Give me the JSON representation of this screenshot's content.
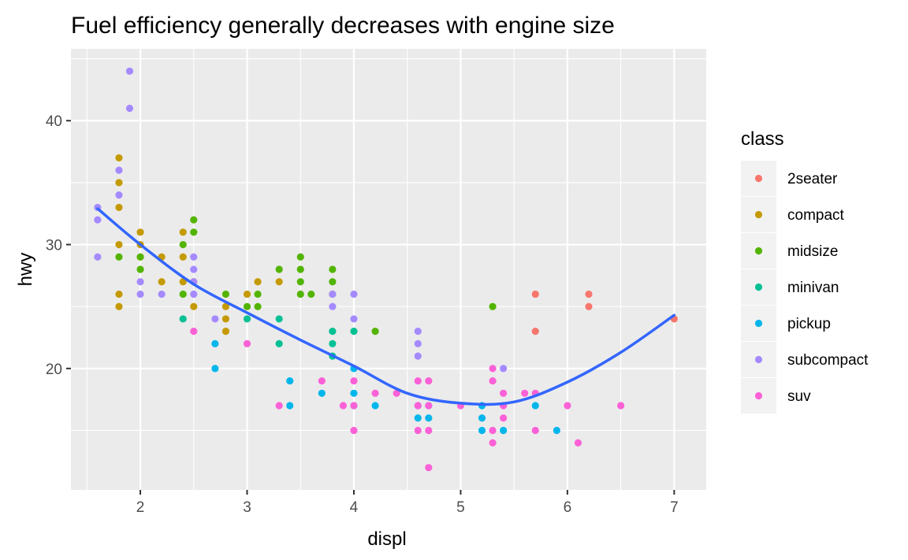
{
  "chart_data": {
    "type": "scatter",
    "title": "Fuel efficiency generally decreases with engine size",
    "xlabel": "displ",
    "ylabel": "hwy",
    "xlim": [
      1.35,
      7.3
    ],
    "ylim": [
      10.2,
      45.8
    ],
    "x_ticks": [
      2,
      3,
      4,
      5,
      6,
      7
    ],
    "y_ticks": [
      20,
      30,
      40
    ],
    "grid": true,
    "legend": {
      "title": "class",
      "position": "right",
      "entries": [
        {
          "name": "2seater",
          "color": "#F8766D"
        },
        {
          "name": "compact",
          "color": "#C49A00"
        },
        {
          "name": "midsize",
          "color": "#53B400"
        },
        {
          "name": "minivan",
          "color": "#00C094"
        },
        {
          "name": "pickup",
          "color": "#00B6EB"
        },
        {
          "name": "subcompact",
          "color": "#A58AFF"
        },
        {
          "name": "suv",
          "color": "#FB61D7"
        }
      ]
    },
    "series": [
      {
        "name": "2seater",
        "color": "#F8766D",
        "points": [
          [
            5.7,
            26
          ],
          [
            5.7,
            23
          ],
          [
            6.2,
            26
          ],
          [
            6.2,
            25
          ],
          [
            7.0,
            24
          ]
        ]
      },
      {
        "name": "compact",
        "color": "#C49A00",
        "points": [
          [
            1.8,
            37
          ],
          [
            1.8,
            35
          ],
          [
            1.8,
            33
          ],
          [
            1.8,
            30
          ],
          [
            1.8,
            26
          ],
          [
            1.8,
            25
          ],
          [
            2.0,
            31
          ],
          [
            2.0,
            30
          ],
          [
            2.0,
            29
          ],
          [
            2.2,
            29
          ],
          [
            2.2,
            27
          ],
          [
            2.4,
            31
          ],
          [
            2.4,
            29
          ],
          [
            2.4,
            27
          ],
          [
            2.5,
            27
          ],
          [
            2.5,
            25
          ],
          [
            2.8,
            25
          ],
          [
            2.8,
            24
          ],
          [
            2.8,
            23
          ],
          [
            3.0,
            26
          ],
          [
            3.1,
            27
          ],
          [
            3.3,
            27
          ]
        ]
      },
      {
        "name": "midsize",
        "color": "#53B400",
        "points": [
          [
            1.8,
            29
          ],
          [
            2.0,
            29
          ],
          [
            2.0,
            28
          ],
          [
            2.4,
            30
          ],
          [
            2.4,
            26
          ],
          [
            2.5,
            32
          ],
          [
            2.5,
            31
          ],
          [
            2.8,
            26
          ],
          [
            3.0,
            25
          ],
          [
            3.1,
            26
          ],
          [
            3.1,
            25
          ],
          [
            3.3,
            28
          ],
          [
            3.5,
            29
          ],
          [
            3.5,
            28
          ],
          [
            3.5,
            27
          ],
          [
            3.5,
            26
          ],
          [
            3.6,
            26
          ],
          [
            3.8,
            28
          ],
          [
            3.8,
            27
          ],
          [
            3.8,
            26
          ],
          [
            5.3,
            25
          ],
          [
            4.2,
            23
          ]
        ]
      },
      {
        "name": "minivan",
        "color": "#00C094",
        "points": [
          [
            2.4,
            24
          ],
          [
            3.0,
            24
          ],
          [
            3.3,
            24
          ],
          [
            3.3,
            22
          ],
          [
            3.8,
            23
          ],
          [
            3.8,
            22
          ],
          [
            3.8,
            21
          ],
          [
            4.0,
            23
          ]
        ]
      },
      {
        "name": "pickup",
        "color": "#00B6EB",
        "points": [
          [
            2.7,
            22
          ],
          [
            2.7,
            20
          ],
          [
            3.4,
            19
          ],
          [
            3.4,
            17
          ],
          [
            3.7,
            18
          ],
          [
            4.0,
            20
          ],
          [
            4.0,
            18
          ],
          [
            4.0,
            17
          ],
          [
            4.2,
            17
          ],
          [
            4.6,
            17
          ],
          [
            4.6,
            16
          ],
          [
            4.7,
            17
          ],
          [
            4.7,
            16
          ],
          [
            5.2,
            17
          ],
          [
            5.2,
            16
          ],
          [
            5.2,
            15
          ],
          [
            5.4,
            15
          ],
          [
            5.7,
            17
          ],
          [
            5.9,
            15
          ]
        ]
      },
      {
        "name": "subcompact",
        "color": "#A58AFF",
        "points": [
          [
            1.6,
            33
          ],
          [
            1.6,
            32
          ],
          [
            1.6,
            29
          ],
          [
            1.8,
            36
          ],
          [
            1.8,
            34
          ],
          [
            1.9,
            44
          ],
          [
            1.9,
            41
          ],
          [
            2.0,
            27
          ],
          [
            2.0,
            26
          ],
          [
            2.2,
            26
          ],
          [
            2.5,
            29
          ],
          [
            2.5,
            28
          ],
          [
            2.5,
            27
          ],
          [
            2.5,
            26
          ],
          [
            2.7,
            24
          ],
          [
            3.8,
            26
          ],
          [
            3.8,
            25
          ],
          [
            4.0,
            26
          ],
          [
            4.0,
            24
          ],
          [
            4.6,
            23
          ],
          [
            4.6,
            22
          ],
          [
            4.6,
            21
          ],
          [
            5.4,
            20
          ]
        ]
      },
      {
        "name": "suv",
        "color": "#FB61D7",
        "points": [
          [
            2.5,
            23
          ],
          [
            3.0,
            22
          ],
          [
            3.3,
            17
          ],
          [
            3.7,
            19
          ],
          [
            3.9,
            17
          ],
          [
            4.0,
            19
          ],
          [
            4.0,
            17
          ],
          [
            4.0,
            15
          ],
          [
            4.2,
            18
          ],
          [
            4.4,
            18
          ],
          [
            4.6,
            19
          ],
          [
            4.6,
            17
          ],
          [
            4.6,
            15
          ],
          [
            4.7,
            19
          ],
          [
            4.7,
            17
          ],
          [
            4.7,
            15
          ],
          [
            4.7,
            12
          ],
          [
            5.0,
            17
          ],
          [
            5.3,
            20
          ],
          [
            5.3,
            19
          ],
          [
            5.3,
            15
          ],
          [
            5.3,
            14
          ],
          [
            5.4,
            18
          ],
          [
            5.4,
            17
          ],
          [
            5.4,
            16
          ],
          [
            5.6,
            18
          ],
          [
            5.7,
            18
          ],
          [
            5.7,
            15
          ],
          [
            6.0,
            17
          ],
          [
            6.1,
            14
          ],
          [
            6.5,
            17
          ]
        ]
      }
    ],
    "smooth": {
      "name": "loess",
      "color": "#3366FF",
      "points": [
        [
          1.6,
          32.9
        ],
        [
          2.0,
          30.0
        ],
        [
          2.5,
          26.8
        ],
        [
          3.0,
          24.5
        ],
        [
          3.5,
          22.3
        ],
        [
          4.0,
          20.2
        ],
        [
          4.5,
          18.0
        ],
        [
          5.0,
          17.2
        ],
        [
          5.5,
          17.3
        ],
        [
          6.0,
          18.9
        ],
        [
          6.5,
          21.3
        ],
        [
          7.0,
          24.3
        ]
      ]
    }
  }
}
